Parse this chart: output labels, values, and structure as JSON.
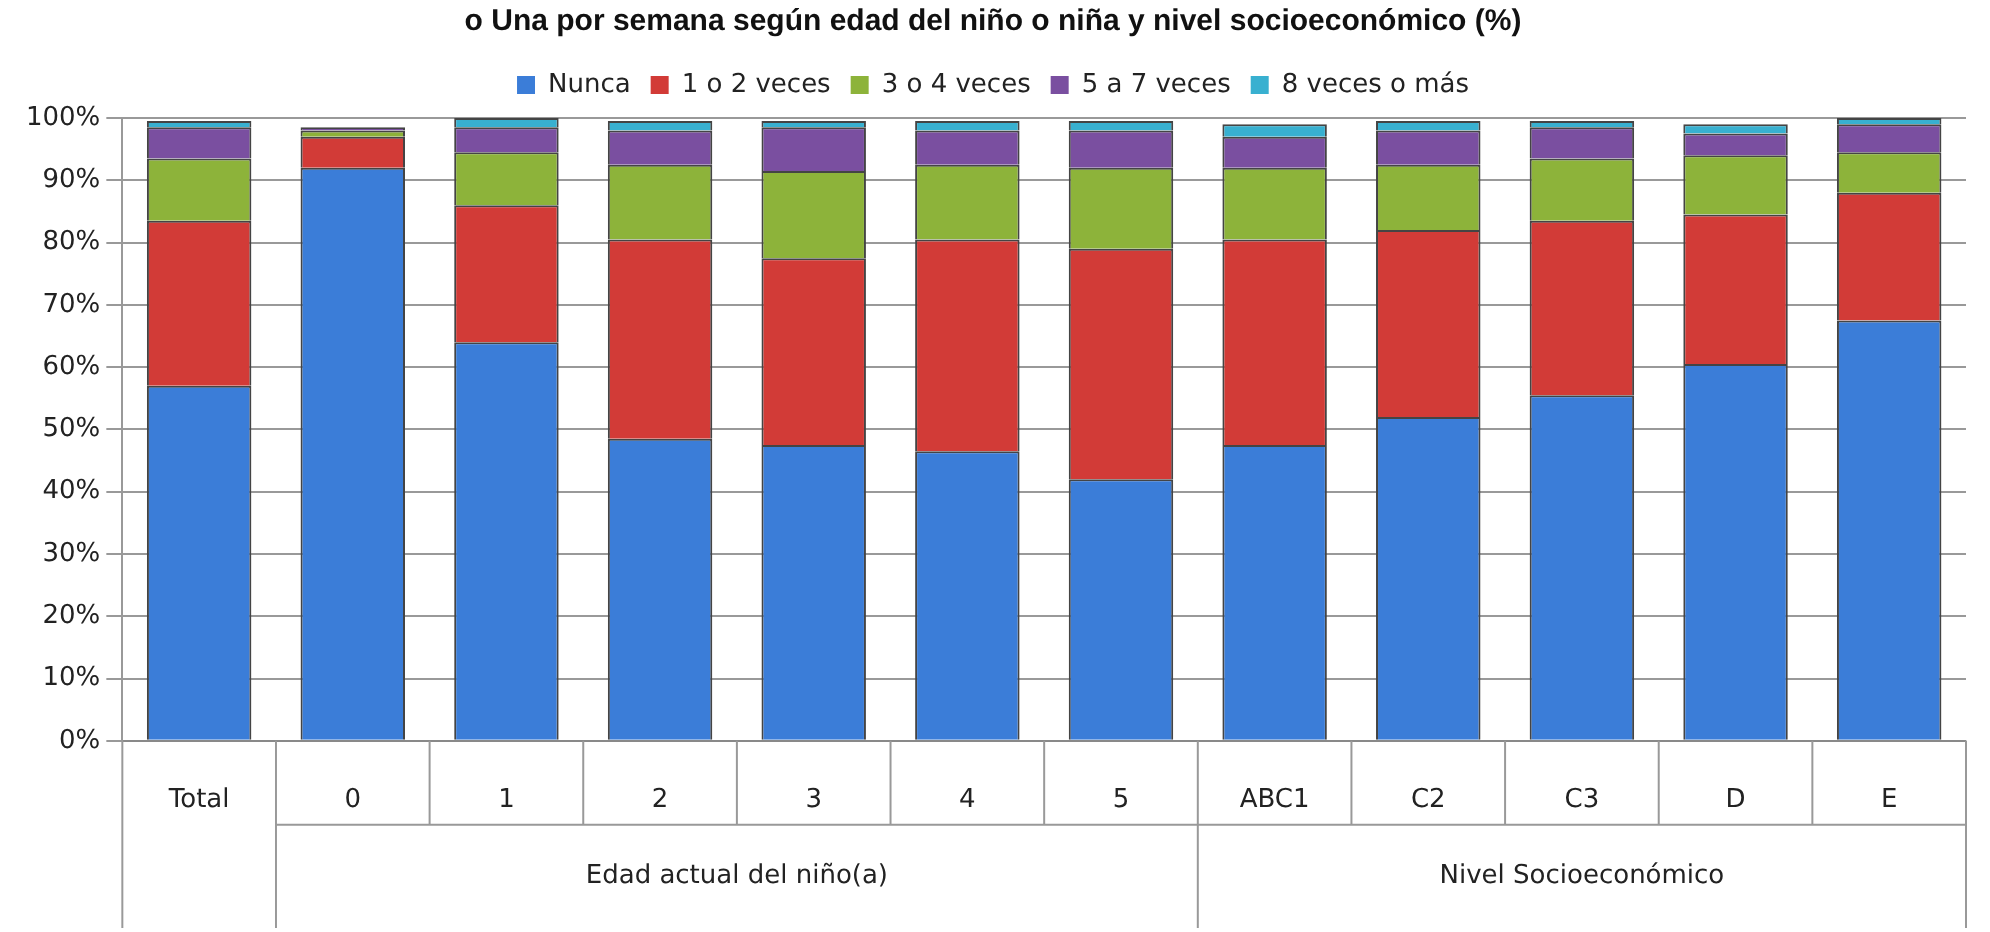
{
  "chart_data": {
    "type": "bar",
    "title": "o Una por semana según edad del niño o niña y nivel socioeconómico (%)",
    "categories": [
      "Total",
      "0",
      "1",
      "2",
      "3",
      "4",
      "5",
      "ABC1",
      "C2",
      "C3",
      "D",
      "E"
    ],
    "stacked": true,
    "series": [
      {
        "name": "Nunca",
        "color": "#3b7dd8",
        "values": [
          57,
          92,
          64,
          48.5,
          47.5,
          46.5,
          42,
          47.5,
          52,
          55.5,
          60.5,
          67.5
        ]
      },
      {
        "name": "1 o 2 veces",
        "color": "#d23b37",
        "values": [
          26.5,
          5,
          22,
          32,
          30,
          34,
          37,
          33,
          30,
          28,
          24,
          20.5
        ]
      },
      {
        "name": "3 o 4 veces",
        "color": "#8db33a",
        "values": [
          10,
          1,
          8.5,
          12,
          14,
          12,
          13,
          11.5,
          10.5,
          10,
          9.5,
          6.5
        ]
      },
      {
        "name": "5 a 7 veces",
        "color": "#7a4fa0",
        "values": [
          5,
          0.5,
          4,
          5.5,
          7,
          5.5,
          6,
          5,
          5.5,
          5,
          3.5,
          4.5
        ]
      },
      {
        "name": "8 veces o más",
        "color": "#38b0d0",
        "values": [
          1,
          0,
          1.5,
          1.5,
          1,
          1.5,
          1.5,
          2,
          1.5,
          1,
          1.5,
          1
        ]
      }
    ],
    "annotations": [
      "Edad actual del niño(a)",
      "Nivel Socioeconómico"
    ],
    "ylim": [
      0,
      100
    ],
    "yticks": [
      {
        "value": 0,
        "label": "0%"
      },
      {
        "value": 10,
        "label": "10%"
      },
      {
        "value": 20,
        "label": "20%"
      },
      {
        "value": 30,
        "label": "30%"
      },
      {
        "value": 40,
        "label": "40%"
      },
      {
        "value": 50,
        "label": "50%"
      },
      {
        "value": 60,
        "label": "60%"
      },
      {
        "value": 70,
        "label": "70%"
      },
      {
        "value": 80,
        "label": "80%"
      },
      {
        "value": 90,
        "label": "90%"
      },
      {
        "value": 100,
        "label": "100%"
      }
    ],
    "grid": "y",
    "legend": "top"
  }
}
